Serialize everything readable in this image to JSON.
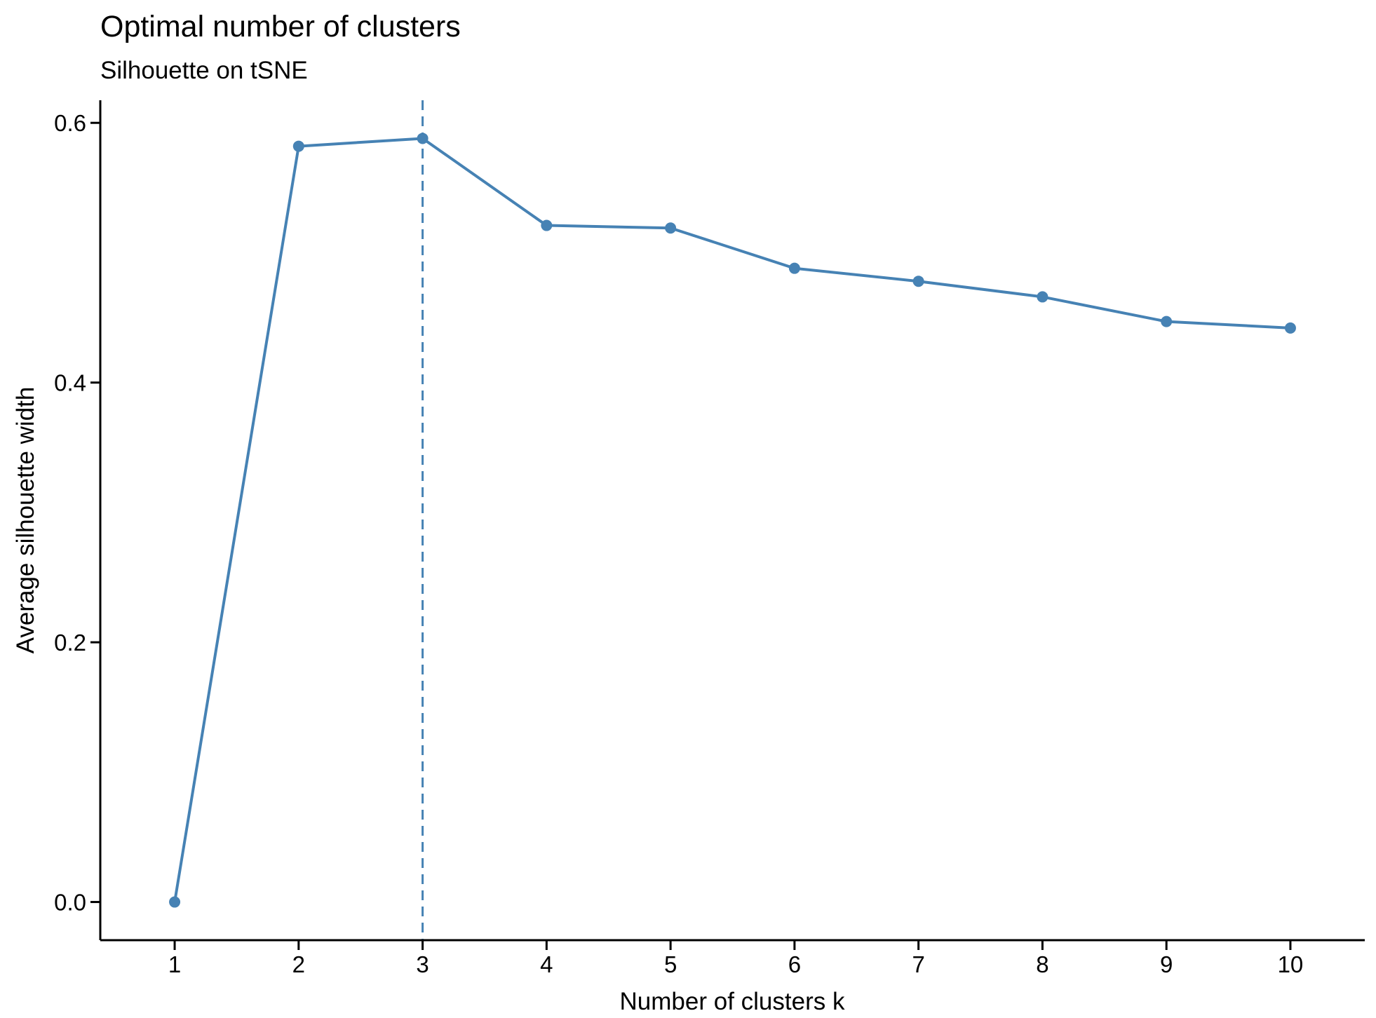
{
  "chart_data": {
    "type": "line",
    "title": "Optimal number of clusters",
    "subtitle": "Silhouette on tSNE",
    "xlabel": "Number of clusters k",
    "ylabel": "Average silhouette width",
    "x": [
      1,
      2,
      3,
      4,
      5,
      6,
      7,
      8,
      9,
      10
    ],
    "series": [
      {
        "values": [
          0.0,
          0.582,
          0.588,
          0.521,
          0.519,
          0.488,
          0.478,
          0.466,
          0.447,
          0.442
        ],
        "color": "#4682B4"
      }
    ],
    "xticks": [
      "1",
      "2",
      "3",
      "4",
      "5",
      "6",
      "7",
      "8",
      "9",
      "10"
    ],
    "yticks": [
      {
        "value": 0.0,
        "label": "0.0"
      },
      {
        "value": 0.2,
        "label": "0.2"
      },
      {
        "value": 0.4,
        "label": "0.4"
      },
      {
        "value": 0.6,
        "label": "0.6"
      }
    ],
    "xlim": [
      0.4,
      10.6
    ],
    "ylim": [
      -0.0294,
      0.6174
    ],
    "reference_line": {
      "x": 3,
      "style": "dashed",
      "color": "#4682B4"
    },
    "grid": false,
    "legend": "none"
  }
}
